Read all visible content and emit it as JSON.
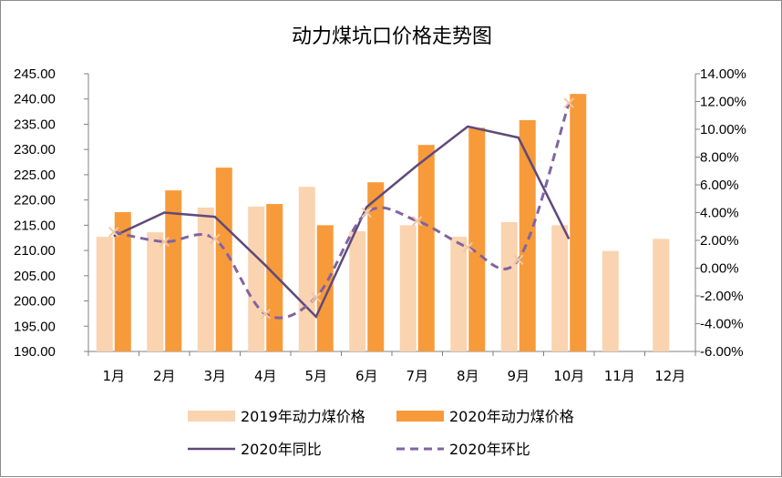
{
  "chart_data": {
    "type": "bar",
    "title": "动力煤坑口价格走势图",
    "categories": [
      "1月",
      "2月",
      "3月",
      "4月",
      "5月",
      "6月",
      "7月",
      "8月",
      "9月",
      "10月",
      "11月",
      "12月"
    ],
    "y_left": {
      "min": 190,
      "max": 245,
      "step": 5,
      "tick_labels": [
        "190.00",
        "195.00",
        "200.00",
        "205.00",
        "210.00",
        "215.00",
        "220.00",
        "225.00",
        "230.00",
        "235.00",
        "240.00",
        "245.00"
      ]
    },
    "y_right": {
      "min": -6,
      "max": 14,
      "step": 2,
      "tick_labels": [
        "-6.00%",
        "-4.00%",
        "-2.00%",
        "0.00%",
        "2.00%",
        "4.00%",
        "6.00%",
        "8.00%",
        "10.00%",
        "12.00%",
        "14.00%"
      ]
    },
    "series": [
      {
        "name": "2019年动力煤价格",
        "type": "bar",
        "axis": "left",
        "color": "#FAD3B0",
        "values": [
          212.7,
          213.6,
          218.5,
          218.7,
          222.6,
          213.8,
          215.0,
          212.7,
          215.6,
          215.0,
          209.9,
          212.3
        ]
      },
      {
        "name": "2020年动力煤价格",
        "type": "bar",
        "axis": "left",
        "color": "#F79A3A",
        "values": [
          217.6,
          221.9,
          226.4,
          219.2,
          215.0,
          223.5,
          230.9,
          234.3,
          235.8,
          241.0,
          null,
          null
        ]
      },
      {
        "name": "2020年同比",
        "type": "line",
        "axis": "right",
        "color": "#60497A",
        "values": [
          2.3,
          4.0,
          3.7,
          0.2,
          -3.5,
          4.4,
          7.4,
          10.2,
          9.4,
          2.1,
          null,
          null
        ]
      },
      {
        "name": "2020年环比",
        "type": "line",
        "axis": "right",
        "style": "dashed",
        "color": "#8064A2",
        "values": [
          2.6,
          1.9,
          2.1,
          -3.3,
          -2.1,
          4.0,
          3.4,
          1.5,
          0.6,
          11.9,
          null,
          null
        ]
      }
    ],
    "legend": {
      "position": "bottom",
      "items": [
        "2019年动力煤价格",
        "2020年动力煤价格",
        "2020年同比",
        "2020年环比"
      ]
    },
    "grid": false
  }
}
